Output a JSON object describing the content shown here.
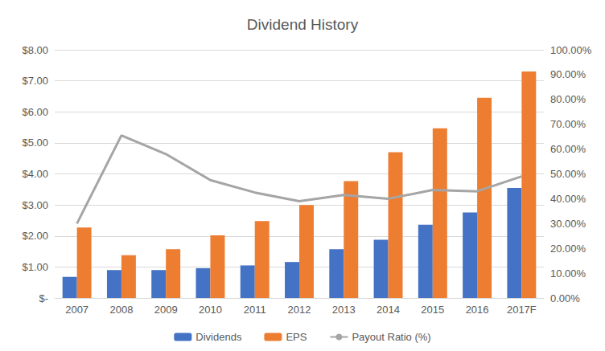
{
  "chart_data": {
    "type": "bar",
    "title": "Dividend History",
    "categories": [
      "2007",
      "2008",
      "2009",
      "2010",
      "2011",
      "2012",
      "2013",
      "2014",
      "2015",
      "2016",
      "2017F"
    ],
    "series": [
      {
        "name": "Dividends",
        "type": "bar",
        "color": "#4472c4",
        "values": [
          0.68,
          0.9,
          0.9,
          0.96,
          1.05,
          1.16,
          1.57,
          1.88,
          2.36,
          2.76,
          3.55
        ]
      },
      {
        "name": "EPS",
        "type": "bar",
        "color": "#ed7d31",
        "values": [
          2.27,
          1.38,
          1.57,
          2.02,
          2.48,
          3.0,
          3.77,
          4.7,
          5.47,
          6.45,
          7.3
        ]
      },
      {
        "name": "Payout Ratio (%)",
        "type": "line",
        "color": "#a5a5a5",
        "marker": "none",
        "axis": "y2",
        "values": [
          30,
          65.5,
          58,
          47.5,
          42.5,
          39,
          41.5,
          40,
          43.5,
          43,
          49
        ]
      }
    ],
    "ylim": [
      0,
      8
    ],
    "yticks": [
      {
        "value": 0,
        "label": "$-"
      },
      {
        "value": 1,
        "label": "$1.00"
      },
      {
        "value": 2,
        "label": "$2.00"
      },
      {
        "value": 3,
        "label": "$3.00"
      },
      {
        "value": 4,
        "label": "$4.00"
      },
      {
        "value": 5,
        "label": "$5.00"
      },
      {
        "value": 6,
        "label": "$6.00"
      },
      {
        "value": 7,
        "label": "$7.00"
      },
      {
        "value": 8,
        "label": "$8.00"
      }
    ],
    "y2lim": [
      0,
      100
    ],
    "y2ticks": [
      {
        "value": 0,
        "label": "0.00%"
      },
      {
        "value": 10,
        "label": "10.00%"
      },
      {
        "value": 20,
        "label": "20.00%"
      },
      {
        "value": 30,
        "label": "30.00%"
      },
      {
        "value": 40,
        "label": "40.00%"
      },
      {
        "value": 50,
        "label": "50.00%"
      },
      {
        "value": 60,
        "label": "60.00%"
      },
      {
        "value": 70,
        "label": "70.00%"
      },
      {
        "value": 80,
        "label": "80.00%"
      },
      {
        "value": 90,
        "label": "90.00%"
      },
      {
        "value": 100,
        "label": "100.00%"
      }
    ],
    "grid": true,
    "legend": "bottom"
  }
}
